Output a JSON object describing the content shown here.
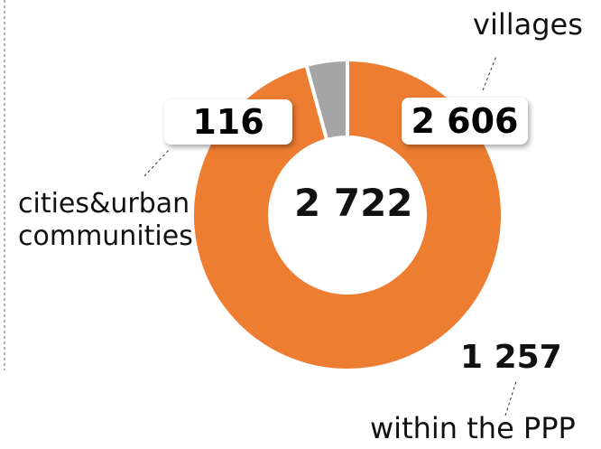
{
  "chart_data": {
    "type": "donut",
    "categories": [
      "cities&urban communities",
      "villages"
    ],
    "values": [
      116,
      2606
    ],
    "value_labels": [
      "116",
      "2 606"
    ],
    "colors": [
      "#a5a5a5",
      "#ed7d31"
    ],
    "center_text": "2 722",
    "annotation": {
      "value_text": "1 257",
      "text": "within the PPP"
    }
  }
}
